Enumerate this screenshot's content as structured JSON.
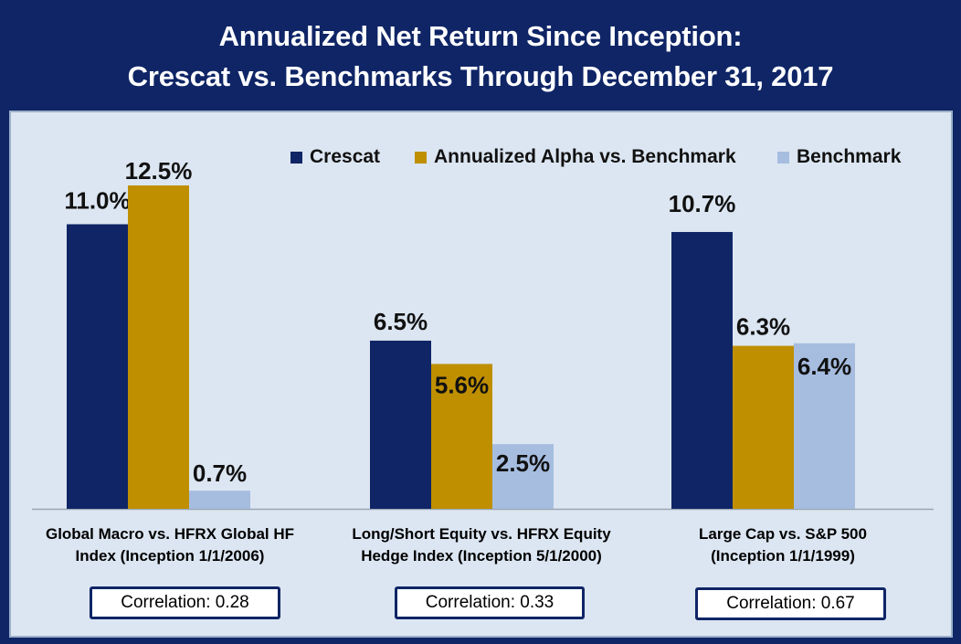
{
  "title": {
    "line1": "Annualized Net Return Since Inception:",
    "line2": "Crescat vs. Benchmarks Through December 31, 2017"
  },
  "colors": {
    "background": "#0f2566",
    "panel": "#dce6f2",
    "crescat": "#0f2566",
    "alpha": "#bf8f00",
    "benchmark": "#a6bde0"
  },
  "chart_data": {
    "type": "bar",
    "categories": [
      "Global Macro vs. HFRX Global HF Index (Inception 1/1/2006)",
      "Long/Short Equity vs. HFRX Equity Hedge Index (Inception 5/1/2000)",
      "Large Cap vs. S&P 500 (Inception 1/1/1999)"
    ],
    "series": [
      {
        "name": "Crescat",
        "values": [
          11.0,
          6.5,
          10.7
        ],
        "labels": [
          "11.0%",
          "6.5%",
          "10.7%"
        ]
      },
      {
        "name": "Annualized Alpha vs. Benchmark",
        "values": [
          12.5,
          5.6,
          6.3
        ],
        "labels": [
          "12.5%",
          "5.6%",
          "6.3%"
        ]
      },
      {
        "name": "Benchmark",
        "values": [
          0.7,
          2.5,
          6.4
        ],
        "labels": [
          "0.7%",
          "2.5%",
          "6.4%"
        ]
      }
    ],
    "ylim": [
      0,
      14
    ],
    "grid": false,
    "legend": "top"
  },
  "categories_display": [
    {
      "line1": "Global Macro vs. HFRX Global HF",
      "line2": "Index (Inception 1/1/2006)",
      "correlation": "Correlation: 0.28"
    },
    {
      "line1": "Long/Short Equity vs. HFRX Equity",
      "line2": "Hedge Index (Inception 5/1/2000)",
      "correlation": "Correlation: 0.33"
    },
    {
      "line1": "Large Cap vs. S&P 500",
      "line2": "(Inception 1/1/1999)",
      "correlation": "Correlation: 0.67"
    }
  ]
}
